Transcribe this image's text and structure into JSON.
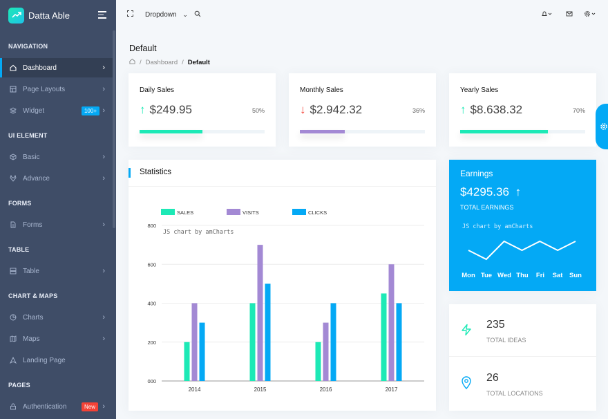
{
  "app": {
    "logo_text": "Datta Able"
  },
  "sidebar": {
    "captions": [
      "NAVIGATION",
      "UI ELEMENT",
      "FORMS",
      "TABLE",
      "CHART & MAPS",
      "PAGES"
    ],
    "items": [
      {
        "label": "Dashboard",
        "icon": "home-icon"
      },
      {
        "label": "Page Layouts",
        "icon": "layout-icon"
      },
      {
        "label": "Widget",
        "icon": "layers-icon",
        "badge": "100+"
      },
      {
        "label": "Basic",
        "icon": "box-icon"
      },
      {
        "label": "Advance",
        "icon": "gitlab-icon"
      },
      {
        "label": "Forms",
        "icon": "file-text-icon"
      },
      {
        "label": "Table",
        "icon": "server-icon"
      },
      {
        "label": "Charts",
        "icon": "pie-chart-icon"
      },
      {
        "label": "Maps",
        "icon": "map-icon"
      },
      {
        "label": "Landing Page",
        "icon": "navigation-icon"
      },
      {
        "label": "Authentication",
        "icon": "lock-icon",
        "badge": "New"
      }
    ]
  },
  "header": {
    "dropdown_label": "Dropdown"
  },
  "page": {
    "title": "Default",
    "breadcrumb": {
      "sep": "/",
      "parent": "Dashboard",
      "current": "Default"
    }
  },
  "sales": [
    {
      "title": "Daily Sales",
      "value": "$249.95",
      "percent": "50%",
      "direction": "up",
      "progress": 0.5,
      "color": "#1de9b6"
    },
    {
      "title": "Monthly Sales",
      "value": "$2.942.32",
      "percent": "36%",
      "direction": "down",
      "progress": 0.36,
      "color": "#a389d4"
    },
    {
      "title": "Yearly Sales",
      "value": "$8.638.32",
      "percent": "70%",
      "direction": "up",
      "progress": 0.7,
      "color": "#1de9b6"
    }
  ],
  "statistics": {
    "title": "Statistics"
  },
  "chart_data": [
    {
      "type": "bar",
      "categories": [
        "2014",
        "2015",
        "2016",
        "2017"
      ],
      "series": [
        {
          "name": "SALES",
          "values": [
            200,
            400,
            200,
            450
          ],
          "color": "#1de9b6"
        },
        {
          "name": "VISITS",
          "values": [
            400,
            700,
            300,
            600
          ],
          "color": "#a389d4"
        },
        {
          "name": "CLICKS",
          "values": [
            300,
            500,
            400,
            400
          ],
          "color": "#04a9f5"
        }
      ],
      "ylim": [
        0,
        800
      ],
      "yticks": [
        "000",
        "200",
        "400",
        "600",
        "800"
      ],
      "credit": "JS chart by amCharts",
      "legend": "top"
    },
    {
      "type": "line",
      "categories": [
        "Mon",
        "Tue",
        "Wed",
        "Thu",
        "Fri",
        "Sat",
        "Sun"
      ],
      "values": [
        3,
        1,
        5,
        3,
        5,
        3,
        5
      ],
      "color": "#ffffff"
    }
  ],
  "earnings": {
    "title": "Earnings",
    "value": "$4295.36",
    "label": "TOTAL EARNINGS",
    "credit": "JS chart by amCharts",
    "days": [
      "Mon",
      "Tue",
      "Wed",
      "Thu",
      "Fri",
      "Sat",
      "Sun"
    ],
    "color": "#04a9f5"
  },
  "ideas": {
    "value": "235",
    "label": "TOTAL IDEAS",
    "icon": "zap-icon"
  },
  "locations": {
    "value": "26",
    "label": "TOTAL LOCATIONS",
    "icon": "map-pin-icon"
  }
}
